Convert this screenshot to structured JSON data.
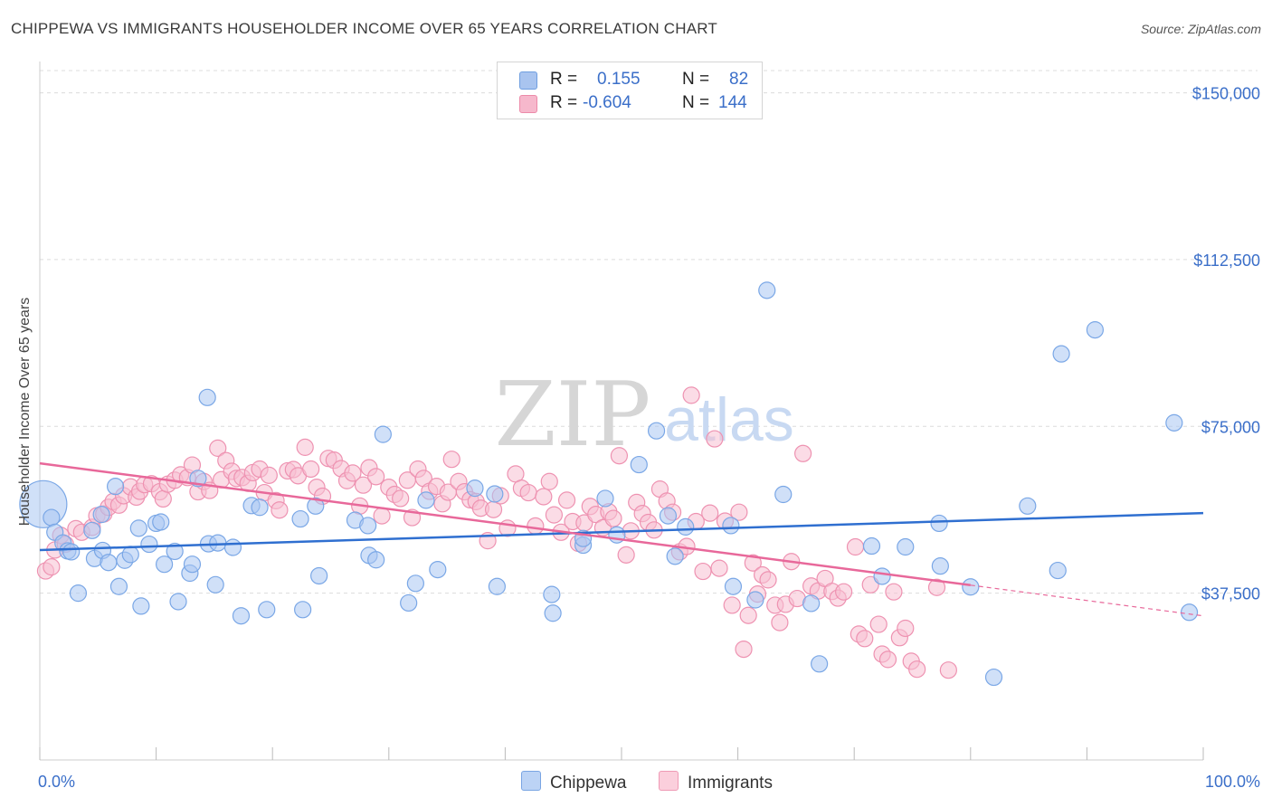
{
  "header": {
    "title": "CHIPPEWA VS IMMIGRANTS HOUSEHOLDER INCOME OVER 65 YEARS CORRELATION CHART",
    "source": "Source: ZipAtlas.com"
  },
  "watermark": {
    "zip": "ZIP",
    "atlas": "atlas"
  },
  "legend": {
    "rows": [
      {
        "r_label": "R =",
        "r_value": "0.155",
        "n_label": "N =",
        "n_value": "82",
        "color": "#a9c4ef",
        "border": "#6f9ee0"
      },
      {
        "r_label": "R =",
        "r_value": "-0.604",
        "n_label": "N = ",
        "n_value": "144",
        "color": "#f6b8cc",
        "border": "#ec8aa9"
      }
    ]
  },
  "bottom_legend": [
    {
      "label": "Chippewa",
      "color": "#bcd3f5",
      "border": "#7aa5e3"
    },
    {
      "label": "Immigrants",
      "color": "#fbcfdc",
      "border": "#ef9ab5"
    }
  ],
  "chart_data": {
    "type": "scatter",
    "title": "CHIPPEWA VS IMMIGRANTS HOUSEHOLDER INCOME OVER 65 YEARS CORRELATION CHART",
    "xlabel": "",
    "ylabel": "Householder Income Over 65 years",
    "xlim": [
      0,
      100
    ],
    "ylim": [
      0,
      155000
    ],
    "x_tick_labels": [
      "0.0%",
      "100.0%"
    ],
    "y_ticks": [
      37500,
      75000,
      112500,
      150000
    ],
    "y_tick_labels": [
      "$37,500",
      "$75,000",
      "$112,500",
      "$150,000"
    ],
    "grid": true,
    "series": [
      {
        "name": "Chippewa",
        "color": "#7aa7e6",
        "fill": "#a9c6f2",
        "trend": {
          "x": [
            0,
            100
          ],
          "y": [
            47200,
            55500
          ],
          "color": "#2f6fd0"
        },
        "points": [
          [
            0.3,
            57.5
          ],
          [
            1.0,
            54.5
          ],
          [
            1.3,
            51.2
          ],
          [
            2.0,
            48.8
          ],
          [
            2.4,
            47.0
          ],
          [
            2.7,
            46.8
          ],
          [
            3.3,
            37.5
          ],
          [
            4.5,
            51.6
          ],
          [
            4.7,
            45.3
          ],
          [
            5.3,
            55.2
          ],
          [
            5.4,
            47.1
          ],
          [
            5.9,
            44.4
          ],
          [
            6.5,
            61.5
          ],
          [
            6.8,
            39.0
          ],
          [
            7.3,
            44.9
          ],
          [
            7.8,
            46.2
          ],
          [
            8.5,
            52.1
          ],
          [
            8.7,
            34.6
          ],
          [
            9.4,
            48.5
          ],
          [
            10.0,
            53.2
          ],
          [
            10.4,
            53.5
          ],
          [
            10.7,
            44.0
          ],
          [
            11.6,
            46.9
          ],
          [
            11.9,
            35.6
          ],
          [
            12.9,
            42.0
          ],
          [
            13.1,
            44.0
          ],
          [
            13.6,
            63.3
          ],
          [
            14.4,
            81.5
          ],
          [
            14.5,
            48.6
          ],
          [
            15.1,
            39.4
          ],
          [
            15.3,
            48.8
          ],
          [
            16.6,
            47.8
          ],
          [
            17.3,
            32.4
          ],
          [
            18.2,
            57.2
          ],
          [
            18.9,
            56.8
          ],
          [
            19.5,
            33.8
          ],
          [
            22.4,
            54.2
          ],
          [
            22.6,
            33.8
          ],
          [
            23.7,
            57.1
          ],
          [
            24.0,
            41.4
          ],
          [
            27.1,
            53.9
          ],
          [
            28.2,
            52.7
          ],
          [
            28.3,
            46.0
          ],
          [
            28.9,
            45.0
          ],
          [
            29.5,
            73.2
          ],
          [
            31.7,
            35.3
          ],
          [
            32.3,
            39.7
          ],
          [
            33.2,
            58.4
          ],
          [
            34.2,
            42.8
          ],
          [
            37.4,
            61.1
          ],
          [
            39.1,
            59.8
          ],
          [
            39.3,
            39.0
          ],
          [
            44.0,
            37.2
          ],
          [
            44.1,
            33.0
          ],
          [
            46.7,
            48.3
          ],
          [
            46.7,
            49.8
          ],
          [
            48.6,
            58.8
          ],
          [
            49.6,
            50.6
          ],
          [
            51.5,
            66.4
          ],
          [
            53.0,
            74.0
          ],
          [
            54.0,
            54.9
          ],
          [
            54.6,
            45.8
          ],
          [
            55.5,
            52.4
          ],
          [
            59.6,
            39.0
          ],
          [
            59.4,
            52.7
          ],
          [
            61.5,
            36.0
          ],
          [
            62.5,
            105.6
          ],
          [
            63.9,
            59.7
          ],
          [
            66.3,
            35.2
          ],
          [
            67.0,
            21.6
          ],
          [
            71.5,
            48.1
          ],
          [
            72.4,
            41.3
          ],
          [
            74.4,
            47.9
          ],
          [
            77.3,
            53.2
          ],
          [
            77.4,
            43.6
          ],
          [
            80.0,
            38.9
          ],
          [
            82.0,
            18.6
          ],
          [
            84.9,
            57.1
          ],
          [
            87.5,
            42.6
          ],
          [
            87.8,
            91.3
          ],
          [
            90.7,
            96.7
          ],
          [
            97.5,
            75.8
          ],
          [
            98.8,
            33.2
          ]
        ]
      },
      {
        "name": "Immigrants",
        "color": "#ee92b1",
        "fill": "#f7bfd1",
        "trend": {
          "x": [
            0,
            80
          ],
          "y": [
            66700,
            39300
          ],
          "color": "#e8689a"
        },
        "trend_dashed": {
          "x": [
            80,
            100
          ],
          "y": [
            39300,
            32400
          ],
          "color": "#e8689a"
        },
        "points": [
          [
            0.5,
            42.5
          ],
          [
            1.0,
            43.4
          ],
          [
            1.3,
            47.2
          ],
          [
            1.8,
            50.5
          ],
          [
            2.2,
            48.5
          ],
          [
            3.1,
            52.0
          ],
          [
            3.6,
            51.2
          ],
          [
            4.5,
            52.3
          ],
          [
            4.9,
            54.9
          ],
          [
            5.5,
            55.3
          ],
          [
            5.9,
            56.8
          ],
          [
            6.3,
            58.1
          ],
          [
            6.8,
            57.3
          ],
          [
            7.2,
            59.4
          ],
          [
            7.8,
            61.4
          ],
          [
            8.3,
            59.1
          ],
          [
            8.6,
            60.4
          ],
          [
            9.0,
            61.9
          ],
          [
            9.6,
            62.1
          ],
          [
            10.3,
            60.3
          ],
          [
            10.6,
            58.7
          ],
          [
            11.0,
            62.0
          ],
          [
            11.6,
            62.9
          ],
          [
            12.1,
            64.1
          ],
          [
            12.7,
            63.5
          ],
          [
            13.1,
            66.3
          ],
          [
            13.6,
            60.3
          ],
          [
            14.1,
            62.6
          ],
          [
            14.6,
            60.6
          ],
          [
            15.3,
            70.1
          ],
          [
            15.6,
            63.0
          ],
          [
            16.0,
            67.3
          ],
          [
            16.5,
            64.9
          ],
          [
            16.9,
            63.3
          ],
          [
            17.4,
            63.5
          ],
          [
            17.9,
            62.2
          ],
          [
            18.3,
            64.6
          ],
          [
            18.9,
            65.4
          ],
          [
            19.3,
            60.1
          ],
          [
            19.7,
            64.0
          ],
          [
            20.3,
            58.3
          ],
          [
            20.6,
            56.2
          ],
          [
            21.3,
            65.0
          ],
          [
            21.8,
            65.3
          ],
          [
            22.2,
            63.9
          ],
          [
            22.8,
            70.3
          ],
          [
            23.3,
            65.4
          ],
          [
            23.8,
            61.3
          ],
          [
            24.3,
            59.3
          ],
          [
            24.8,
            67.8
          ],
          [
            25.3,
            67.4
          ],
          [
            25.9,
            65.5
          ],
          [
            26.4,
            62.8
          ],
          [
            26.9,
            64.5
          ],
          [
            27.5,
            57.1
          ],
          [
            27.8,
            61.8
          ],
          [
            28.3,
            65.7
          ],
          [
            28.9,
            63.7
          ],
          [
            29.4,
            54.9
          ],
          [
            30.0,
            61.3
          ],
          [
            30.5,
            59.7
          ],
          [
            31.0,
            58.8
          ],
          [
            31.6,
            62.9
          ],
          [
            32.0,
            54.5
          ],
          [
            32.5,
            65.4
          ],
          [
            33.0,
            63.3
          ],
          [
            33.5,
            60.4
          ],
          [
            34.1,
            61.5
          ],
          [
            34.6,
            57.6
          ],
          [
            35.1,
            60.2
          ],
          [
            35.4,
            67.6
          ],
          [
            36.0,
            62.6
          ],
          [
            36.5,
            60.3
          ],
          [
            37.0,
            58.5
          ],
          [
            37.5,
            58.1
          ],
          [
            37.9,
            56.6
          ],
          [
            38.5,
            49.3
          ],
          [
            39.0,
            56.3
          ],
          [
            39.6,
            59.4
          ],
          [
            40.2,
            52.1
          ],
          [
            40.9,
            64.3
          ],
          [
            41.4,
            61.1
          ],
          [
            42.0,
            60.1
          ],
          [
            42.6,
            52.6
          ],
          [
            43.3,
            59.2
          ],
          [
            43.8,
            62.6
          ],
          [
            44.2,
            55.1
          ],
          [
            44.8,
            51.2
          ],
          [
            45.3,
            58.4
          ],
          [
            45.8,
            53.6
          ],
          [
            46.3,
            48.7
          ],
          [
            46.8,
            53.3
          ],
          [
            47.3,
            57.0
          ],
          [
            47.8,
            55.2
          ],
          [
            48.4,
            52.2
          ],
          [
            48.9,
            55.8
          ],
          [
            49.3,
            54.3
          ],
          [
            49.8,
            68.4
          ],
          [
            50.4,
            46.1
          ],
          [
            50.8,
            51.5
          ],
          [
            51.3,
            57.9
          ],
          [
            51.8,
            55.4
          ],
          [
            52.3,
            53.4
          ],
          [
            52.8,
            51.7
          ],
          [
            53.3,
            60.9
          ],
          [
            53.9,
            58.2
          ],
          [
            54.4,
            55.7
          ],
          [
            55.0,
            46.8
          ],
          [
            55.6,
            48.0
          ],
          [
            56.0,
            82.0
          ],
          [
            56.4,
            53.6
          ],
          [
            57.0,
            42.4
          ],
          [
            57.6,
            55.5
          ],
          [
            58.0,
            72.2
          ],
          [
            58.4,
            43.1
          ],
          [
            58.9,
            53.7
          ],
          [
            59.5,
            34.8
          ],
          [
            60.1,
            55.7
          ],
          [
            60.5,
            24.9
          ],
          [
            60.9,
            32.5
          ],
          [
            61.3,
            44.3
          ],
          [
            61.7,
            37.3
          ],
          [
            62.1,
            41.6
          ],
          [
            62.6,
            40.5
          ],
          [
            63.2,
            34.8
          ],
          [
            63.6,
            30.9
          ],
          [
            64.1,
            35.0
          ],
          [
            64.6,
            44.6
          ],
          [
            65.1,
            36.3
          ],
          [
            65.6,
            68.9
          ],
          [
            66.3,
            39.1
          ],
          [
            66.9,
            38.0
          ],
          [
            67.5,
            40.8
          ],
          [
            68.1,
            37.9
          ],
          [
            68.6,
            36.4
          ],
          [
            69.1,
            37.8
          ],
          [
            70.1,
            47.9
          ],
          [
            70.4,
            28.3
          ],
          [
            70.9,
            27.3
          ],
          [
            71.4,
            39.4
          ],
          [
            72.1,
            30.5
          ],
          [
            72.4,
            23.8
          ],
          [
            72.9,
            22.6
          ],
          [
            73.4,
            37.8
          ],
          [
            73.9,
            27.5
          ],
          [
            74.4,
            29.6
          ],
          [
            74.9,
            22.2
          ],
          [
            75.4,
            20.4
          ],
          [
            77.1,
            38.8
          ],
          [
            78.1,
            20.2
          ]
        ]
      }
    ]
  }
}
